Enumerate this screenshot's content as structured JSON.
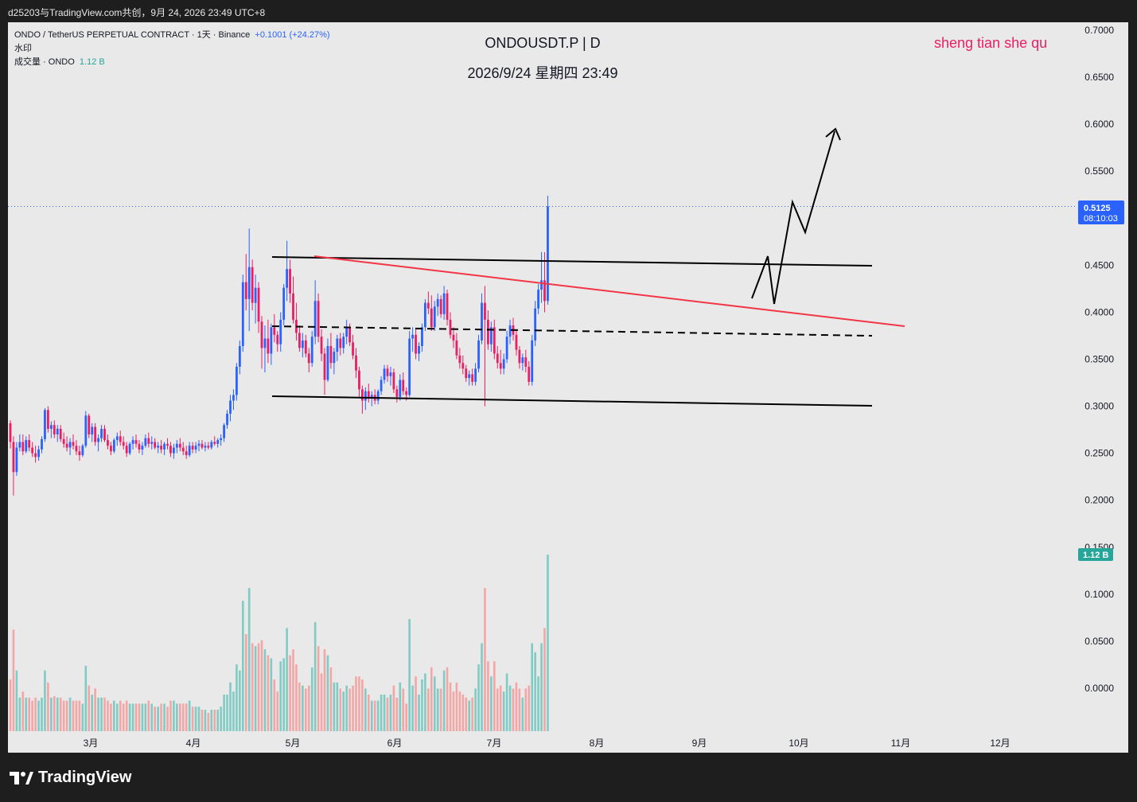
{
  "header": {
    "caption": "d25203与TradingView.com共创，9月 24, 2026 23:49 UTC+8"
  },
  "legend": {
    "symbol_line": "ONDO / TetherUS PERPETUAL CONTRACT · 1天 · Binance",
    "change": "+0.1001 (+24.27%)",
    "watermark_label": "水印",
    "volume_label": "成交量 · ONDO",
    "volume_value": "1.12 B"
  },
  "title": {
    "symbol": "ONDOUSDT.P | D",
    "datetime": "2026/9/24 星期四 23:49"
  },
  "watermark_text": "sheng tian she qu",
  "brand": "TradingView",
  "colors": {
    "up": "#2962ff",
    "down": "#e91e63",
    "vol_up": "#80cbc4",
    "vol_down": "#f4a6a6",
    "trendline": "#f23645",
    "channel": "#000000",
    "price_badge": "#2962ff",
    "vol_badge": "#26a69a"
  },
  "chart_data": {
    "type": "candlestick",
    "interval": "1D",
    "price_axis": {
      "ticks": [
        "0.7000",
        "0.6500",
        "0.6000",
        "0.5500",
        "0.4500",
        "0.4000",
        "0.3500",
        "0.3000",
        "0.2500",
        "0.2000",
        "0.1500",
        "0.1000",
        "0.0500",
        "0.0000"
      ]
    },
    "time_axis": {
      "labels": [
        "3月",
        "4月",
        "5月",
        "6月",
        "7月",
        "8月",
        "9月",
        "10月",
        "11月",
        "12月"
      ]
    },
    "last_price": {
      "value": "0.5125",
      "countdown": "08:10:03"
    },
    "volume_badge": "1.12 B",
    "ohlc": [
      [
        0.282,
        0.285,
        0.255,
        0.262
      ],
      [
        0.262,
        0.268,
        0.205,
        0.23
      ],
      [
        0.23,
        0.262,
        0.226,
        0.256
      ],
      [
        0.256,
        0.27,
        0.252,
        0.262
      ],
      [
        0.262,
        0.27,
        0.248,
        0.252
      ],
      [
        0.252,
        0.268,
        0.25,
        0.264
      ],
      [
        0.264,
        0.27,
        0.252,
        0.256
      ],
      [
        0.256,
        0.262,
        0.246,
        0.25
      ],
      [
        0.25,
        0.258,
        0.24,
        0.246
      ],
      [
        0.246,
        0.258,
        0.242,
        0.254
      ],
      [
        0.254,
        0.268,
        0.25,
        0.265
      ],
      [
        0.265,
        0.298,
        0.262,
        0.296
      ],
      [
        0.296,
        0.3,
        0.272,
        0.276
      ],
      [
        0.276,
        0.284,
        0.266,
        0.28
      ],
      [
        0.28,
        0.285,
        0.266,
        0.27
      ],
      [
        0.27,
        0.28,
        0.262,
        0.276
      ],
      [
        0.276,
        0.28,
        0.262,
        0.265
      ],
      [
        0.265,
        0.272,
        0.256,
        0.26
      ],
      [
        0.26,
        0.268,
        0.252,
        0.256
      ],
      [
        0.256,
        0.266,
        0.248,
        0.262
      ],
      [
        0.262,
        0.27,
        0.254,
        0.258
      ],
      [
        0.258,
        0.264,
        0.248,
        0.252
      ],
      [
        0.252,
        0.258,
        0.242,
        0.248
      ],
      [
        0.248,
        0.26,
        0.246,
        0.258
      ],
      [
        0.258,
        0.295,
        0.256,
        0.29
      ],
      [
        0.29,
        0.292,
        0.266,
        0.27
      ],
      [
        0.27,
        0.282,
        0.262,
        0.278
      ],
      [
        0.278,
        0.282,
        0.258,
        0.262
      ],
      [
        0.262,
        0.27,
        0.252,
        0.266
      ],
      [
        0.266,
        0.28,
        0.262,
        0.276
      ],
      [
        0.276,
        0.28,
        0.262,
        0.264
      ],
      [
        0.264,
        0.27,
        0.254,
        0.258
      ],
      [
        0.258,
        0.262,
        0.248,
        0.252
      ],
      [
        0.252,
        0.266,
        0.25,
        0.264
      ],
      [
        0.264,
        0.272,
        0.258,
        0.268
      ],
      [
        0.268,
        0.274,
        0.258,
        0.262
      ],
      [
        0.262,
        0.268,
        0.254,
        0.258
      ],
      [
        0.258,
        0.262,
        0.246,
        0.25
      ],
      [
        0.25,
        0.262,
        0.248,
        0.26
      ],
      [
        0.26,
        0.268,
        0.254,
        0.264
      ],
      [
        0.264,
        0.27,
        0.256,
        0.26
      ],
      [
        0.26,
        0.264,
        0.25,
        0.254
      ],
      [
        0.254,
        0.262,
        0.248,
        0.258
      ],
      [
        0.258,
        0.27,
        0.256,
        0.266
      ],
      [
        0.266,
        0.272,
        0.256,
        0.26
      ],
      [
        0.26,
        0.268,
        0.254,
        0.262
      ],
      [
        0.262,
        0.266,
        0.254,
        0.256
      ],
      [
        0.256,
        0.262,
        0.25,
        0.258
      ],
      [
        0.258,
        0.264,
        0.25,
        0.254
      ],
      [
        0.254,
        0.262,
        0.248,
        0.26
      ],
      [
        0.26,
        0.266,
        0.254,
        0.258
      ],
      [
        0.258,
        0.262,
        0.246,
        0.25
      ],
      [
        0.25,
        0.26,
        0.244,
        0.256
      ],
      [
        0.256,
        0.264,
        0.25,
        0.26
      ],
      [
        0.26,
        0.266,
        0.252,
        0.256
      ],
      [
        0.256,
        0.262,
        0.248,
        0.252
      ],
      [
        0.252,
        0.258,
        0.244,
        0.248
      ],
      [
        0.248,
        0.262,
        0.246,
        0.258
      ],
      [
        0.258,
        0.262,
        0.25,
        0.254
      ],
      [
        0.254,
        0.262,
        0.25,
        0.258
      ],
      [
        0.258,
        0.264,
        0.252,
        0.26
      ],
      [
        0.26,
        0.264,
        0.254,
        0.256
      ],
      [
        0.256,
        0.262,
        0.252,
        0.258
      ],
      [
        0.258,
        0.262,
        0.254,
        0.256
      ],
      [
        0.256,
        0.264,
        0.254,
        0.262
      ],
      [
        0.262,
        0.268,
        0.258,
        0.26
      ],
      [
        0.26,
        0.266,
        0.256,
        0.264
      ],
      [
        0.264,
        0.27,
        0.258,
        0.266
      ],
      [
        0.266,
        0.282,
        0.262,
        0.28
      ],
      [
        0.28,
        0.296,
        0.276,
        0.292
      ],
      [
        0.292,
        0.312,
        0.284,
        0.306
      ],
      [
        0.306,
        0.318,
        0.296,
        0.312
      ],
      [
        0.312,
        0.346,
        0.306,
        0.342
      ],
      [
        0.342,
        0.37,
        0.334,
        0.364
      ],
      [
        0.364,
        0.44,
        0.358,
        0.432
      ],
      [
        0.432,
        0.462,
        0.402,
        0.414
      ],
      [
        0.414,
        0.489,
        0.38,
        0.448
      ],
      [
        0.448,
        0.456,
        0.402,
        0.41
      ],
      [
        0.41,
        0.44,
        0.388,
        0.426
      ],
      [
        0.426,
        0.432,
        0.378,
        0.39
      ],
      [
        0.39,
        0.396,
        0.34,
        0.362
      ],
      [
        0.362,
        0.386,
        0.336,
        0.372
      ],
      [
        0.372,
        0.392,
        0.346,
        0.356
      ],
      [
        0.356,
        0.388,
        0.344,
        0.384
      ],
      [
        0.384,
        0.398,
        0.368,
        0.376
      ],
      [
        0.376,
        0.38,
        0.358,
        0.366
      ],
      [
        0.366,
        0.4,
        0.358,
        0.392
      ],
      [
        0.392,
        0.43,
        0.386,
        0.426
      ],
      [
        0.426,
        0.476,
        0.412,
        0.446
      ],
      [
        0.446,
        0.456,
        0.41,
        0.42
      ],
      [
        0.42,
        0.438,
        0.388,
        0.392
      ],
      [
        0.392,
        0.41,
        0.37,
        0.378
      ],
      [
        0.378,
        0.386,
        0.358,
        0.362
      ],
      [
        0.362,
        0.378,
        0.352,
        0.37
      ],
      [
        0.37,
        0.376,
        0.352,
        0.356
      ],
      [
        0.356,
        0.362,
        0.336,
        0.346
      ],
      [
        0.346,
        0.38,
        0.342,
        0.374
      ],
      [
        0.374,
        0.434,
        0.366,
        0.412
      ],
      [
        0.412,
        0.42,
        0.368,
        0.374
      ],
      [
        0.374,
        0.382,
        0.348,
        0.356
      ],
      [
        0.356,
        0.362,
        0.312,
        0.328
      ],
      [
        0.328,
        0.372,
        0.326,
        0.364
      ],
      [
        0.364,
        0.378,
        0.34,
        0.346
      ],
      [
        0.346,
        0.362,
        0.334,
        0.358
      ],
      [
        0.358,
        0.376,
        0.348,
        0.372
      ],
      [
        0.372,
        0.378,
        0.354,
        0.362
      ],
      [
        0.362,
        0.378,
        0.356,
        0.374
      ],
      [
        0.374,
        0.392,
        0.366,
        0.384
      ],
      [
        0.384,
        0.388,
        0.364,
        0.368
      ],
      [
        0.368,
        0.376,
        0.35,
        0.354
      ],
      [
        0.354,
        0.362,
        0.33,
        0.338
      ],
      [
        0.338,
        0.342,
        0.31,
        0.318
      ],
      [
        0.318,
        0.322,
        0.292,
        0.306
      ],
      [
        0.306,
        0.32,
        0.296,
        0.316
      ],
      [
        0.316,
        0.324,
        0.304,
        0.308
      ],
      [
        0.308,
        0.316,
        0.3,
        0.312
      ],
      [
        0.312,
        0.318,
        0.302,
        0.306
      ],
      [
        0.306,
        0.318,
        0.302,
        0.316
      ],
      [
        0.316,
        0.332,
        0.312,
        0.328
      ],
      [
        0.328,
        0.344,
        0.324,
        0.34
      ],
      [
        0.34,
        0.344,
        0.326,
        0.332
      ],
      [
        0.332,
        0.342,
        0.322,
        0.336
      ],
      [
        0.336,
        0.34,
        0.314,
        0.318
      ],
      [
        0.318,
        0.322,
        0.304,
        0.31
      ],
      [
        0.31,
        0.334,
        0.306,
        0.328
      ],
      [
        0.328,
        0.336,
        0.312,
        0.316
      ],
      [
        0.316,
        0.32,
        0.306,
        0.312
      ],
      [
        0.312,
        0.38,
        0.31,
        0.372
      ],
      [
        0.372,
        0.384,
        0.358,
        0.376
      ],
      [
        0.376,
        0.382,
        0.35,
        0.356
      ],
      [
        0.356,
        0.368,
        0.348,
        0.364
      ],
      [
        0.364,
        0.388,
        0.358,
        0.384
      ],
      [
        0.384,
        0.414,
        0.38,
        0.41
      ],
      [
        0.41,
        0.422,
        0.398,
        0.404
      ],
      [
        0.404,
        0.418,
        0.38,
        0.384
      ],
      [
        0.384,
        0.412,
        0.38,
        0.406
      ],
      [
        0.406,
        0.42,
        0.396,
        0.414
      ],
      [
        0.414,
        0.418,
        0.394,
        0.398
      ],
      [
        0.398,
        0.428,
        0.392,
        0.42
      ],
      [
        0.42,
        0.424,
        0.386,
        0.392
      ],
      [
        0.392,
        0.4,
        0.372,
        0.376
      ],
      [
        0.376,
        0.384,
        0.362,
        0.37
      ],
      [
        0.37,
        0.378,
        0.35,
        0.354
      ],
      [
        0.354,
        0.362,
        0.34,
        0.346
      ],
      [
        0.346,
        0.354,
        0.334,
        0.34
      ],
      [
        0.34,
        0.344,
        0.326,
        0.33
      ],
      [
        0.33,
        0.338,
        0.322,
        0.334
      ],
      [
        0.334,
        0.34,
        0.322,
        0.326
      ],
      [
        0.326,
        0.346,
        0.322,
        0.34
      ],
      [
        0.34,
        0.376,
        0.336,
        0.37
      ],
      [
        0.37,
        0.42,
        0.366,
        0.41
      ],
      [
        0.41,
        0.428,
        0.3,
        0.392
      ],
      [
        0.392,
        0.402,
        0.36,
        0.366
      ],
      [
        0.366,
        0.39,
        0.358,
        0.384
      ],
      [
        0.384,
        0.392,
        0.35,
        0.356
      ],
      [
        0.356,
        0.364,
        0.34,
        0.346
      ],
      [
        0.346,
        0.36,
        0.334,
        0.34
      ],
      [
        0.34,
        0.356,
        0.334,
        0.35
      ],
      [
        0.35,
        0.38,
        0.346,
        0.374
      ],
      [
        0.374,
        0.392,
        0.366,
        0.386
      ],
      [
        0.386,
        0.394,
        0.37,
        0.376
      ],
      [
        0.376,
        0.382,
        0.354,
        0.36
      ],
      [
        0.36,
        0.364,
        0.34,
        0.346
      ],
      [
        0.346,
        0.356,
        0.338,
        0.352
      ],
      [
        0.352,
        0.36,
        0.336,
        0.342
      ],
      [
        0.342,
        0.348,
        0.322,
        0.326
      ],
      [
        0.326,
        0.376,
        0.322,
        0.37
      ],
      [
        0.37,
        0.412,
        0.364,
        0.404
      ],
      [
        0.404,
        0.43,
        0.398,
        0.424
      ],
      [
        0.424,
        0.464,
        0.41,
        0.434
      ],
      [
        0.434,
        0.464,
        0.4,
        0.412
      ],
      [
        0.412,
        0.524,
        0.408,
        0.5125
      ]
    ],
    "volume_note": "volume bars below price, last bar 1.12 B",
    "drawings": [
      {
        "type": "channel-top",
        "from": [
          0.461
        ],
        "to": [
          0.45
        ]
      },
      {
        "type": "channel-bottom",
        "from": [
          0.31
        ],
        "to": [
          0.301
        ]
      },
      {
        "type": "channel-mid-dashed",
        "from": [
          0.384
        ],
        "to": [
          0.375
        ]
      },
      {
        "type": "descending-trendline",
        "from": [
          0.461
        ],
        "to": [
          0.385
        ]
      },
      {
        "type": "projection-arrow",
        "to_price": 0.596
      }
    ]
  }
}
